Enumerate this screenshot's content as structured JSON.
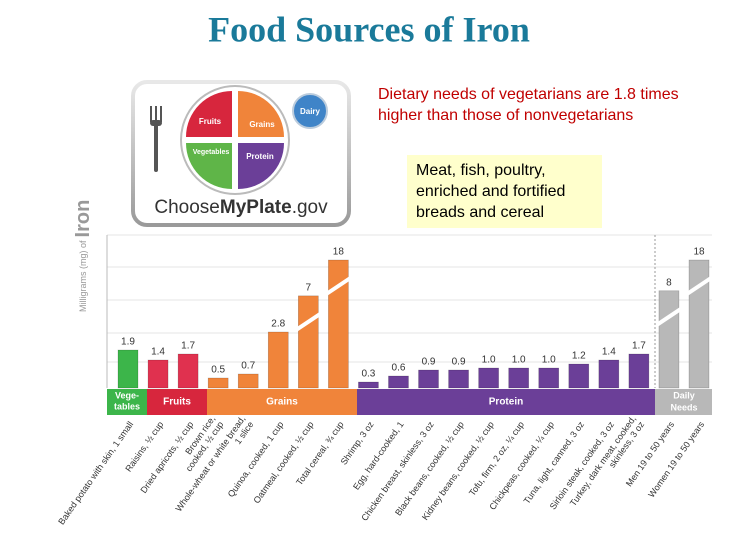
{
  "chart_data": {
    "type": "bar",
    "title": "Food Sources of Iron",
    "note": [
      "Dietary needs of vegetarians are 1.8 times",
      "higher than those of nonvegetarians"
    ],
    "callout": [
      "Meat, fish, poultry,",
      "enriched and fortified",
      "breads and cereal"
    ],
    "ylabel": "Milligrams (mg) of",
    "ylabel_emphasis": "Iron",
    "logo": {
      "fruits": "Fruits",
      "grains": "Grains",
      "vegetables": "Vegetables",
      "protein": "Protein",
      "dairy": "Dairy",
      "site": [
        "Choose",
        "MyPlate",
        ".gov"
      ]
    },
    "groups": [
      [
        "Vege-",
        "tables"
      ],
      [
        "Fruits"
      ],
      [
        "Grains"
      ],
      [
        "Protein"
      ],
      [
        "Daily",
        "Needs"
      ]
    ],
    "categories": [
      [
        "Baked potato with skin, 1 small"
      ],
      [
        "Raisins, ½ cup"
      ],
      [
        "Dried apricots, ½ cup"
      ],
      [
        "Brown rice,",
        "cooked, ½ cup"
      ],
      [
        "Whole-wheat or white bread,",
        "1 slice"
      ],
      [
        "Quinoa, cooked, 1 cup"
      ],
      [
        "Oatmeal, cooked, ½ cup"
      ],
      [
        "Total cereal, ¾ cup"
      ],
      [
        "Shrimp, 3 oz"
      ],
      [
        "Egg, hard-cooked, 1"
      ],
      [
        "Chicken breast, skinless, 3 oz"
      ],
      [
        "Black beans, cooked, ½ cup"
      ],
      [
        "Kidney beans, cooked, ½ cup"
      ],
      [
        "Tofu, firm, 2 oz, ¼ cup"
      ],
      [
        "Chickpeas, cooked, ¼ cup"
      ],
      [
        "Tuna, light, canned, 3 oz"
      ],
      [
        "Sirloin steak, cooked, 3 oz"
      ],
      [
        "Turkey, dark meat, cooked,",
        "skinless, 3 oz"
      ],
      [
        "Men 19 to 50 years"
      ],
      [
        "Women 19 to 50 years"
      ]
    ],
    "values": [
      1.9,
      1.4,
      1.7,
      0.5,
      0.7,
      2.8,
      7,
      18,
      0.3,
      0.6,
      0.9,
      0.9,
      1.0,
      1.0,
      1.0,
      1.2,
      1.4,
      1.7,
      8,
      18
    ],
    "value_labels": [
      "1.9",
      "1.4",
      "1.7",
      "0.5",
      "0.7",
      "2.8",
      "7",
      "18",
      "0.3",
      "0.6",
      "0.9",
      "0.9",
      "1.0",
      "1.0",
      "1.0",
      "1.2",
      "1.4",
      "1.7",
      "8",
      "18"
    ],
    "colors": [
      "#3cb54a",
      "#e0314f",
      "#e0314f",
      "#f0843a",
      "#f0843a",
      "#f0843a",
      "#f0843a",
      "#f0843a",
      "#6b3f98",
      "#6b3f98",
      "#6b3f98",
      "#6b3f98",
      "#6b3f98",
      "#6b3f98",
      "#6b3f98",
      "#6b3f98",
      "#6b3f98",
      "#6b3f98",
      "#b8b8b8",
      "#b8b8b8"
    ]
  }
}
